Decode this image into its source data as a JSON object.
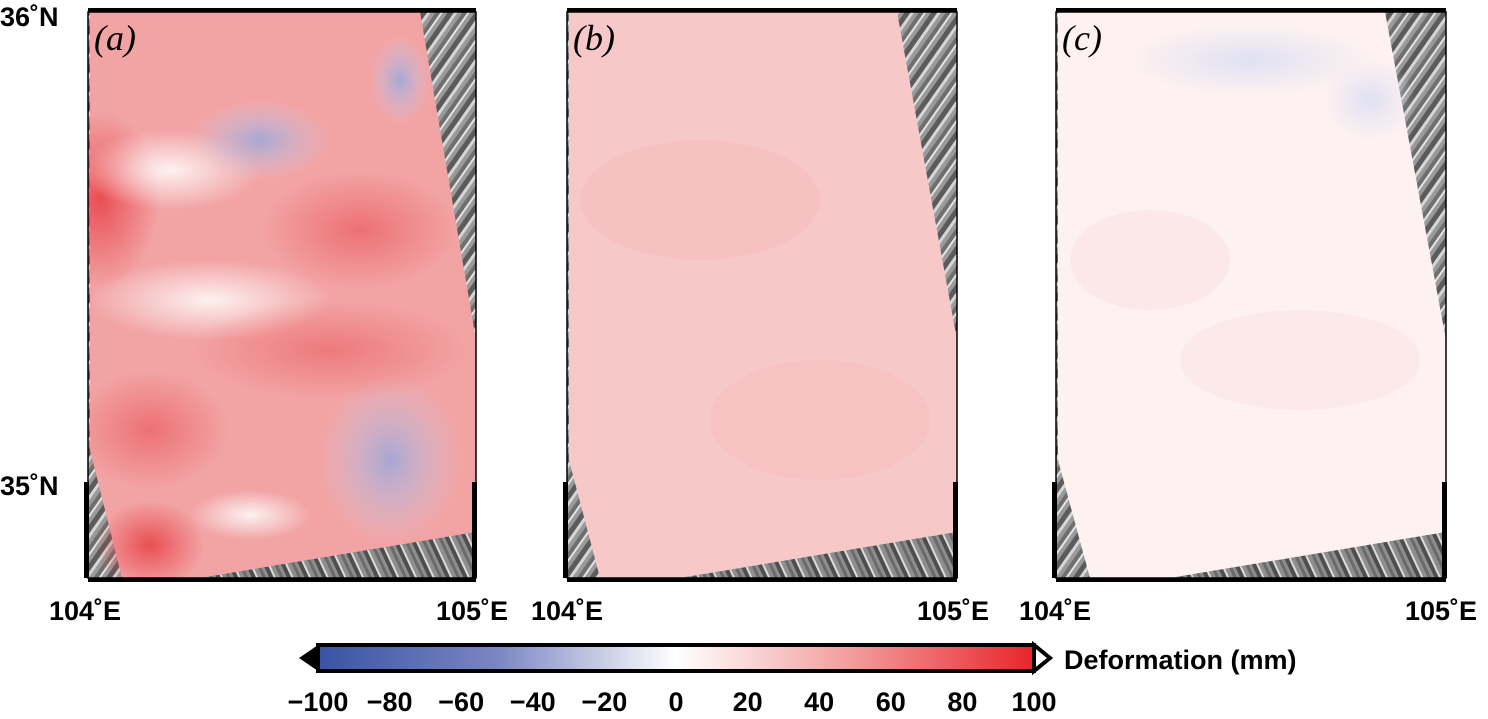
{
  "figure": {
    "latitude_labels": {
      "north": "36˚N",
      "south": "35˚N"
    },
    "longitude_labels": {
      "west": "104˚E",
      "east": "105˚E"
    },
    "panels": [
      {
        "tag": "(a)",
        "description": "strong positive deformation with negative patches"
      },
      {
        "tag": "(b)",
        "description": "uniform moderate positive deformation"
      },
      {
        "tag": "(c)",
        "description": "near-zero residual deformation"
      }
    ]
  },
  "colorbar": {
    "title": "Deformation (mm)",
    "min": -100,
    "max": 100,
    "ticks": [
      "−100",
      "−80",
      "−60",
      "−40",
      "−20",
      "0",
      "20",
      "40",
      "60",
      "80",
      "100"
    ],
    "colors": {
      "negative": "#3a53a4",
      "zero": "#ffffff",
      "positive": "#e8252a"
    },
    "triangles": {
      "left": "filled",
      "right": "open"
    }
  },
  "colors": {
    "terrain_dark": "#5b5b5b",
    "terrain_light": "#bdbdbd"
  }
}
